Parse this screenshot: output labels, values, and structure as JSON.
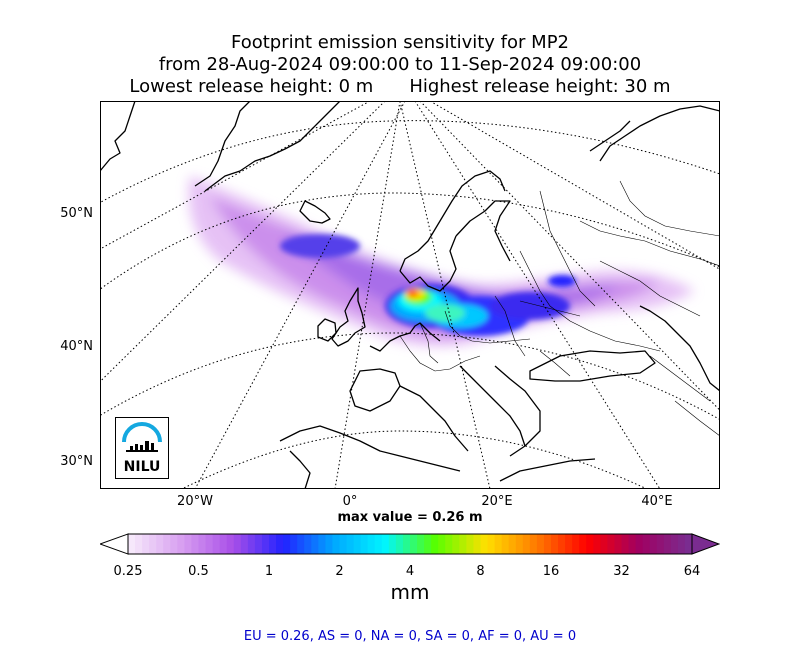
{
  "title": {
    "line1": "Footprint emission sensitivity for MP2",
    "line2": "from 28-Aug-2024 09:00:00 to 11-Sep-2024 09:00:00",
    "lowest": "Lowest release height: 0 m",
    "highest": "Highest release height: 30 m"
  },
  "map": {
    "projection": "polar stereographic",
    "lat_labels": [
      "50°N",
      "40°N",
      "30°N"
    ],
    "lon_labels": [
      "20°W",
      "0°",
      "20°E",
      "40°E"
    ],
    "max_value": "max value = 0.26 m",
    "logo_text": "NILU"
  },
  "colorbar": {
    "ticks": [
      "0.25",
      "0.5",
      "1",
      "2",
      "4",
      "8",
      "16",
      "32",
      "64"
    ],
    "unit": "mm",
    "colors": [
      "#f6e8fb",
      "#d79ef0",
      "#a94fe8",
      "#2222ff",
      "#00a8ff",
      "#00f5ff",
      "#57ff00",
      "#ffe000",
      "#ff7a00",
      "#ff0000",
      "#a10060",
      "#7a2c90"
    ]
  },
  "regions": "EU = 0.26,  AS = 0,  NA = 0,  SA = 0,  AF = 0,  AU = 0"
}
